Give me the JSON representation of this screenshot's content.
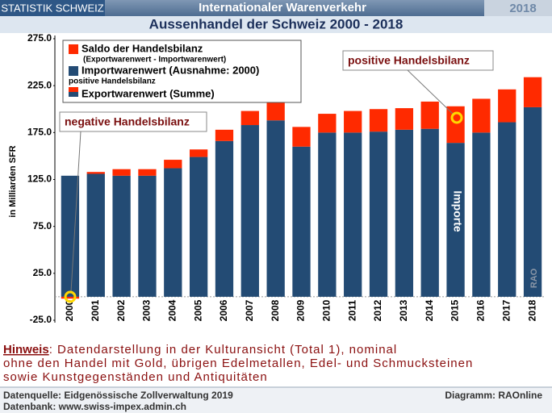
{
  "header": {
    "left": "STATISTIK SCHWEIZ",
    "center": "Internationaler Warenverkehr",
    "right": "2018"
  },
  "chart_data": {
    "type": "bar",
    "stacked": true,
    "title": "Aussenhandel der Schweiz 2000 - 2018",
    "y_label": "in Milliarden SFR",
    "categories": [
      "2000",
      "2001",
      "2002",
      "2003",
      "2004",
      "2005",
      "2006",
      "2007",
      "2008",
      "2009",
      "2010",
      "2011",
      "2012",
      "2013",
      "2014",
      "2015",
      "2016",
      "2017",
      "2018"
    ],
    "series": [
      {
        "name": "Importwarenwert (Ausnahme: 2000)",
        "color": "#234b74",
        "values": [
          129,
          131,
          129,
          129,
          137,
          149,
          166,
          183,
          188,
          160,
          175,
          175,
          176,
          178,
          179,
          164,
          175,
          186,
          202
        ]
      },
      {
        "name": "Saldo der Handelsbilanz",
        "color": "#ff2a00",
        "values": [
          -2,
          2,
          7,
          7,
          9,
          8,
          12,
          15,
          19,
          21,
          20,
          23,
          24,
          23,
          29,
          39,
          36,
          35,
          32
        ]
      }
    ],
    "legend_notes": {
      "saldo_note": "(Exportwarenwert - Importwarenwert)",
      "positive_label": "positive Handelsbilanz",
      "export_label": "Exportwarenwert (Summe)"
    },
    "annotations": {
      "negative": "negative Handelsbilanz",
      "positive": "positive Handelsbilanz",
      "imports": "Importe",
      "watermark": "RAO"
    },
    "ylim": [
      -25,
      275
    ],
    "yticks": [
      {
        "value": -25,
        "label": "-25.0"
      },
      {
        "value": 25,
        "label": "25.0"
      },
      {
        "value": 75,
        "label": "75.0"
      },
      {
        "value": 125,
        "label": "125.0"
      },
      {
        "value": 175,
        "label": "175.0"
      },
      {
        "value": 225,
        "label": "225.0"
      },
      {
        "value": 275,
        "label": "275.0"
      }
    ],
    "grid": false
  },
  "note": {
    "keyword": "Hinweis",
    "line1": ": Datendarstellung in der Kulturansicht (Total 1), nominal",
    "line2": "ohne den Handel mit Gold, übrigen Edelmetallen, Edel- und Schmucksteinen",
    "line3": "sowie Kunstgegenständen und Antiquitäten"
  },
  "footer": {
    "source": "Datenquelle: Eidgenössische Zollverwaltung 2019",
    "database": "Datenbank: www.swiss-impex.admin.ch",
    "credit": "Diagramm: RAOnline"
  }
}
